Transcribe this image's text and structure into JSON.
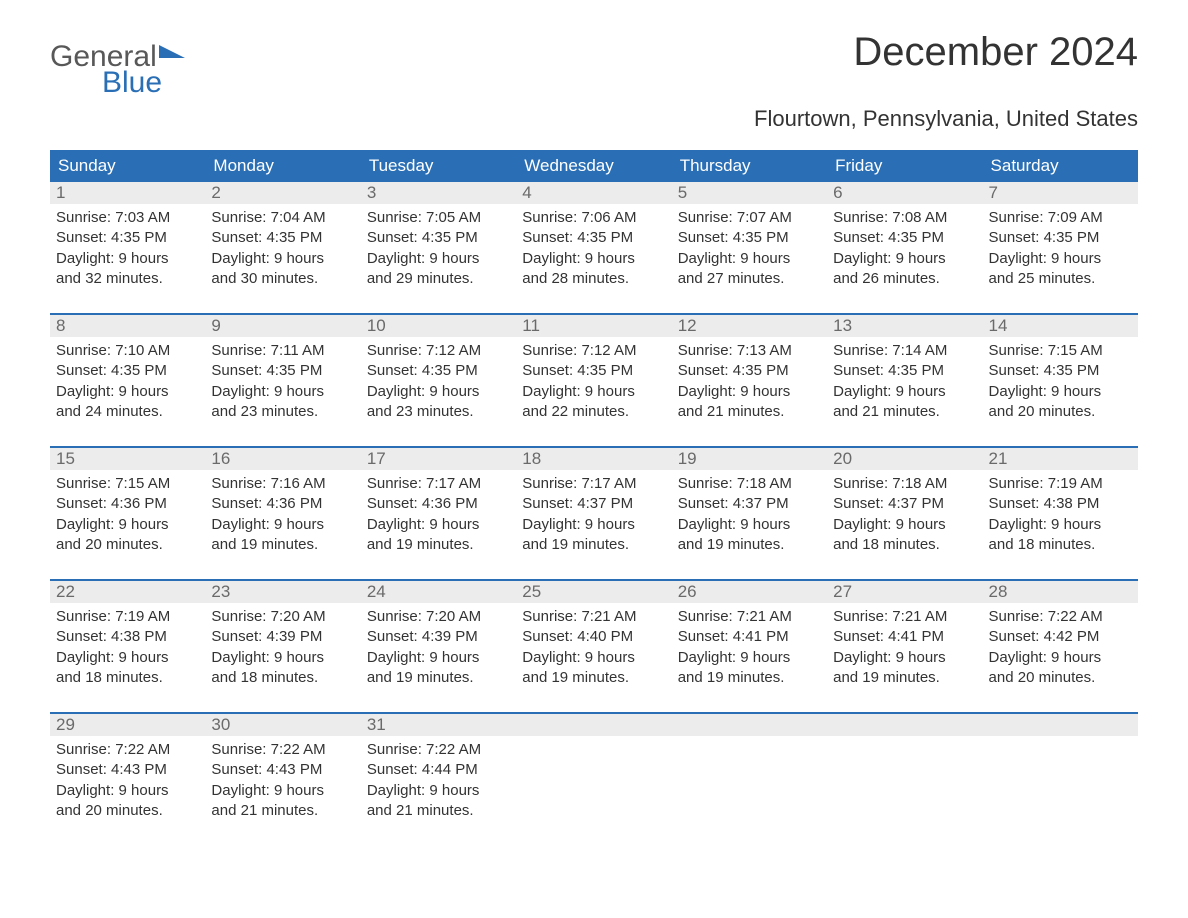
{
  "logo": {
    "text_general": "General",
    "text_blue": "Blue",
    "general_color": "#585858",
    "blue_color": "#2a6fb5"
  },
  "title": "December 2024",
  "subtitle": "Flourtown, Pennsylvania, United States",
  "colors": {
    "header_bg": "#2a6fb5",
    "header_text": "#ffffff",
    "daynum_bg": "#ececec",
    "daynum_text": "#6a6a6a",
    "body_text": "#333333",
    "week_border": "#2a6fb5",
    "page_bg": "#ffffff"
  },
  "fontsize": {
    "title": 40,
    "subtitle": 22,
    "dayheader": 17,
    "daynum": 17,
    "daybody": 15
  },
  "day_headers": [
    "Sunday",
    "Monday",
    "Tuesday",
    "Wednesday",
    "Thursday",
    "Friday",
    "Saturday"
  ],
  "weeks": [
    [
      {
        "n": "1",
        "sunrise": "Sunrise: 7:03 AM",
        "sunset": "Sunset: 4:35 PM",
        "dl1": "Daylight: 9 hours",
        "dl2": "and 32 minutes."
      },
      {
        "n": "2",
        "sunrise": "Sunrise: 7:04 AM",
        "sunset": "Sunset: 4:35 PM",
        "dl1": "Daylight: 9 hours",
        "dl2": "and 30 minutes."
      },
      {
        "n": "3",
        "sunrise": "Sunrise: 7:05 AM",
        "sunset": "Sunset: 4:35 PM",
        "dl1": "Daylight: 9 hours",
        "dl2": "and 29 minutes."
      },
      {
        "n": "4",
        "sunrise": "Sunrise: 7:06 AM",
        "sunset": "Sunset: 4:35 PM",
        "dl1": "Daylight: 9 hours",
        "dl2": "and 28 minutes."
      },
      {
        "n": "5",
        "sunrise": "Sunrise: 7:07 AM",
        "sunset": "Sunset: 4:35 PM",
        "dl1": "Daylight: 9 hours",
        "dl2": "and 27 minutes."
      },
      {
        "n": "6",
        "sunrise": "Sunrise: 7:08 AM",
        "sunset": "Sunset: 4:35 PM",
        "dl1": "Daylight: 9 hours",
        "dl2": "and 26 minutes."
      },
      {
        "n": "7",
        "sunrise": "Sunrise: 7:09 AM",
        "sunset": "Sunset: 4:35 PM",
        "dl1": "Daylight: 9 hours",
        "dl2": "and 25 minutes."
      }
    ],
    [
      {
        "n": "8",
        "sunrise": "Sunrise: 7:10 AM",
        "sunset": "Sunset: 4:35 PM",
        "dl1": "Daylight: 9 hours",
        "dl2": "and 24 minutes."
      },
      {
        "n": "9",
        "sunrise": "Sunrise: 7:11 AM",
        "sunset": "Sunset: 4:35 PM",
        "dl1": "Daylight: 9 hours",
        "dl2": "and 23 minutes."
      },
      {
        "n": "10",
        "sunrise": "Sunrise: 7:12 AM",
        "sunset": "Sunset: 4:35 PM",
        "dl1": "Daylight: 9 hours",
        "dl2": "and 23 minutes."
      },
      {
        "n": "11",
        "sunrise": "Sunrise: 7:12 AM",
        "sunset": "Sunset: 4:35 PM",
        "dl1": "Daylight: 9 hours",
        "dl2": "and 22 minutes."
      },
      {
        "n": "12",
        "sunrise": "Sunrise: 7:13 AM",
        "sunset": "Sunset: 4:35 PM",
        "dl1": "Daylight: 9 hours",
        "dl2": "and 21 minutes."
      },
      {
        "n": "13",
        "sunrise": "Sunrise: 7:14 AM",
        "sunset": "Sunset: 4:35 PM",
        "dl1": "Daylight: 9 hours",
        "dl2": "and 21 minutes."
      },
      {
        "n": "14",
        "sunrise": "Sunrise: 7:15 AM",
        "sunset": "Sunset: 4:35 PM",
        "dl1": "Daylight: 9 hours",
        "dl2": "and 20 minutes."
      }
    ],
    [
      {
        "n": "15",
        "sunrise": "Sunrise: 7:15 AM",
        "sunset": "Sunset: 4:36 PM",
        "dl1": "Daylight: 9 hours",
        "dl2": "and 20 minutes."
      },
      {
        "n": "16",
        "sunrise": "Sunrise: 7:16 AM",
        "sunset": "Sunset: 4:36 PM",
        "dl1": "Daylight: 9 hours",
        "dl2": "and 19 minutes."
      },
      {
        "n": "17",
        "sunrise": "Sunrise: 7:17 AM",
        "sunset": "Sunset: 4:36 PM",
        "dl1": "Daylight: 9 hours",
        "dl2": "and 19 minutes."
      },
      {
        "n": "18",
        "sunrise": "Sunrise: 7:17 AM",
        "sunset": "Sunset: 4:37 PM",
        "dl1": "Daylight: 9 hours",
        "dl2": "and 19 minutes."
      },
      {
        "n": "19",
        "sunrise": "Sunrise: 7:18 AM",
        "sunset": "Sunset: 4:37 PM",
        "dl1": "Daylight: 9 hours",
        "dl2": "and 19 minutes."
      },
      {
        "n": "20",
        "sunrise": "Sunrise: 7:18 AM",
        "sunset": "Sunset: 4:37 PM",
        "dl1": "Daylight: 9 hours",
        "dl2": "and 18 minutes."
      },
      {
        "n": "21",
        "sunrise": "Sunrise: 7:19 AM",
        "sunset": "Sunset: 4:38 PM",
        "dl1": "Daylight: 9 hours",
        "dl2": "and 18 minutes."
      }
    ],
    [
      {
        "n": "22",
        "sunrise": "Sunrise: 7:19 AM",
        "sunset": "Sunset: 4:38 PM",
        "dl1": "Daylight: 9 hours",
        "dl2": "and 18 minutes."
      },
      {
        "n": "23",
        "sunrise": "Sunrise: 7:20 AM",
        "sunset": "Sunset: 4:39 PM",
        "dl1": "Daylight: 9 hours",
        "dl2": "and 18 minutes."
      },
      {
        "n": "24",
        "sunrise": "Sunrise: 7:20 AM",
        "sunset": "Sunset: 4:39 PM",
        "dl1": "Daylight: 9 hours",
        "dl2": "and 19 minutes."
      },
      {
        "n": "25",
        "sunrise": "Sunrise: 7:21 AM",
        "sunset": "Sunset: 4:40 PM",
        "dl1": "Daylight: 9 hours",
        "dl2": "and 19 minutes."
      },
      {
        "n": "26",
        "sunrise": "Sunrise: 7:21 AM",
        "sunset": "Sunset: 4:41 PM",
        "dl1": "Daylight: 9 hours",
        "dl2": "and 19 minutes."
      },
      {
        "n": "27",
        "sunrise": "Sunrise: 7:21 AM",
        "sunset": "Sunset: 4:41 PM",
        "dl1": "Daylight: 9 hours",
        "dl2": "and 19 minutes."
      },
      {
        "n": "28",
        "sunrise": "Sunrise: 7:22 AM",
        "sunset": "Sunset: 4:42 PM",
        "dl1": "Daylight: 9 hours",
        "dl2": "and 20 minutes."
      }
    ],
    [
      {
        "n": "29",
        "sunrise": "Sunrise: 7:22 AM",
        "sunset": "Sunset: 4:43 PM",
        "dl1": "Daylight: 9 hours",
        "dl2": "and 20 minutes."
      },
      {
        "n": "30",
        "sunrise": "Sunrise: 7:22 AM",
        "sunset": "Sunset: 4:43 PM",
        "dl1": "Daylight: 9 hours",
        "dl2": "and 21 minutes."
      },
      {
        "n": "31",
        "sunrise": "Sunrise: 7:22 AM",
        "sunset": "Sunset: 4:44 PM",
        "dl1": "Daylight: 9 hours",
        "dl2": "and 21 minutes."
      },
      {
        "empty": true
      },
      {
        "empty": true
      },
      {
        "empty": true
      },
      {
        "empty": true
      }
    ]
  ]
}
